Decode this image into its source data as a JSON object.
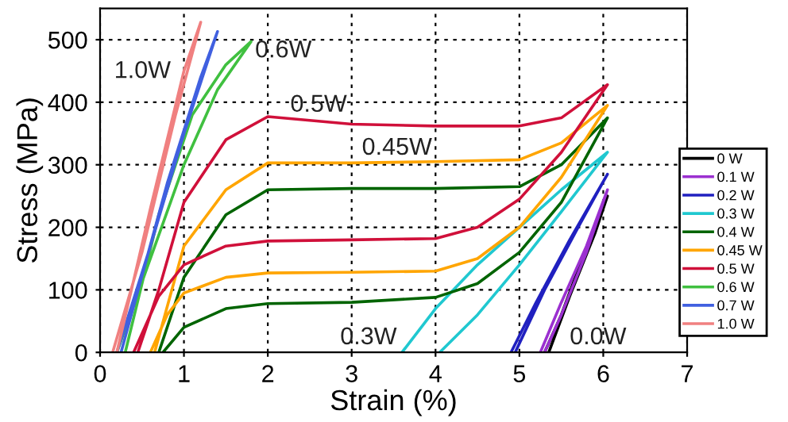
{
  "chart_data": {
    "type": "line",
    "xlabel": "Strain (%)",
    "ylabel": "Stress (MPa)",
    "xlim": [
      0,
      7
    ],
    "ylim": [
      0,
      550
    ],
    "xticks": [
      0,
      1,
      2,
      3,
      4,
      5,
      6,
      7
    ],
    "yticks": [
      0,
      100,
      200,
      300,
      400,
      500
    ],
    "grid": true,
    "legend": "right",
    "marker": "none",
    "line_style": "solid",
    "series": [
      {
        "name": "0 W",
        "color": "#000000",
        "x": [
          5.3,
          5.5,
          5.75,
          6.05,
          5.9,
          5.6,
          5.35
        ],
        "values": [
          0,
          60,
          150,
          250,
          190,
          90,
          0
        ]
      },
      {
        "name": "0.1 W",
        "color": "#9b30d0",
        "x": [
          5.25,
          5.5,
          5.8,
          6.05,
          5.8,
          5.5,
          5.3
        ],
        "values": [
          0,
          80,
          170,
          260,
          160,
          60,
          0
        ]
      },
      {
        "name": "0.2 W",
        "color": "#2020c0",
        "x": [
          4.9,
          5.2,
          5.6,
          6.05,
          5.7,
          5.3,
          4.95
        ],
        "values": [
          0,
          80,
          180,
          285,
          200,
          100,
          0
        ]
      },
      {
        "name": "0.3 W",
        "color": "#20c8d0",
        "x": [
          3.6,
          4,
          4.5,
          5,
          5.5,
          6.05,
          5.5,
          5,
          4.5,
          4.05
        ],
        "values": [
          0,
          70,
          140,
          200,
          260,
          320,
          225,
          140,
          60,
          0
        ]
      },
      {
        "name": "0.4 W",
        "color": "#006400",
        "x": [
          0.75,
          1,
          1.5,
          2,
          3,
          4,
          4.5,
          5,
          5.5,
          6.05,
          5.5,
          5,
          4,
          3,
          2,
          1.5,
          1,
          0.7
        ],
        "values": [
          0,
          40,
          70,
          78,
          80,
          88,
          110,
          160,
          240,
          375,
          300,
          265,
          262,
          262,
          260,
          220,
          120,
          0
        ]
      },
      {
        "name": "0.45 W",
        "color": "#ffa500",
        "x": [
          0.6,
          0.8,
          1,
          1.5,
          2,
          3,
          4,
          4.5,
          5,
          5.5,
          6.05,
          5.5,
          5,
          4,
          3,
          2,
          1.5,
          1,
          0.65
        ],
        "values": [
          0,
          60,
          95,
          120,
          127,
          128,
          130,
          150,
          200,
          280,
          395,
          335,
          308,
          305,
          303,
          303,
          260,
          170,
          0
        ]
      },
      {
        "name": "0.5 W",
        "color": "#d0103a",
        "x": [
          0.4,
          0.7,
          1,
          1.5,
          2,
          3,
          4,
          4.5,
          5,
          5.5,
          6.05,
          5.5,
          5,
          4,
          3,
          2,
          1.5,
          1,
          0.7,
          0.45
        ],
        "values": [
          0,
          90,
          140,
          170,
          178,
          180,
          182,
          200,
          245,
          320,
          428,
          375,
          362,
          362,
          365,
          377,
          340,
          240,
          100,
          0
        ]
      },
      {
        "name": "0.6 W",
        "color": "#40c040",
        "x": [
          0.2,
          0.6,
          1,
          1.4,
          1.8,
          1.5,
          1.1,
          0.7,
          0.3
        ],
        "values": [
          0,
          150,
          300,
          420,
          497,
          460,
          380,
          220,
          0
        ]
      },
      {
        "name": "0.7 W",
        "color": "#4060e0",
        "x": [
          0.2,
          0.6,
          1,
          1.4,
          1.2,
          0.8,
          0.25
        ],
        "values": [
          0,
          170,
          350,
          513,
          440,
          270,
          0
        ]
      },
      {
        "name": "1.0 W",
        "color": "#f08080",
        "x": [
          0.15,
          0.5,
          0.9,
          1.2,
          1.0,
          0.6,
          0.2
        ],
        "values": [
          0,
          160,
          380,
          528,
          450,
          230,
          0
        ]
      }
    ],
    "annotations": [
      "1.0W",
      "0.6W",
      "0.5W",
      "0.45W",
      "0.3W",
      "0.0W"
    ]
  }
}
